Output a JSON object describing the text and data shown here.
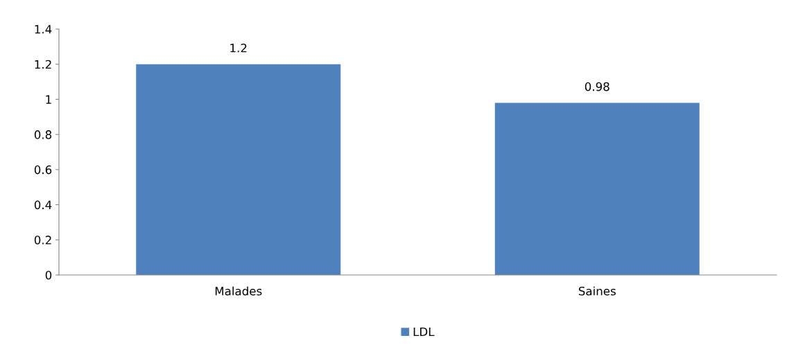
{
  "chart_data": {
    "type": "bar",
    "categories": [
      "Malades",
      "Saines"
    ],
    "series": [
      {
        "name": "LDL",
        "color": "#4f81bd",
        "values": [
          1.2,
          0.98
        ]
      }
    ],
    "ylim": [
      0,
      1.4
    ],
    "yticks": [
      0,
      0.2,
      0.4,
      0.6,
      0.8,
      1,
      1.2,
      1.4
    ],
    "data_labels": true,
    "legend": "bottom",
    "grid": false
  }
}
